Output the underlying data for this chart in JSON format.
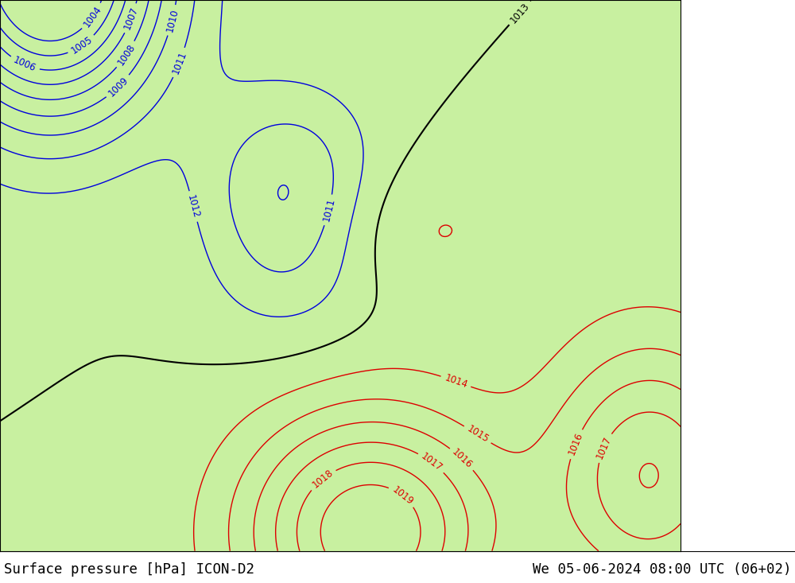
{
  "title_left": "Surface pressure [hPa] ICON-D2",
  "title_right": "We 05-06-2024 08:00 UTC (06+02)",
  "title_fontsize": 12.5,
  "title_color": "#000000",
  "fig_width": 10.0,
  "fig_height": 7.33,
  "dpi": 100,
  "land_color": "#c8f0a0",
  "sea_color": "#d8d8d8",
  "outside_color": "#c8b878",
  "border_color": "#000000",
  "coast_color": "#808080",
  "blue_contour_color": "#0000dd",
  "red_contour_color": "#dd0000",
  "black_contour_color": "#000000",
  "contour_linewidth": 1.0,
  "label_fontsize": 8.5,
  "levels_blue": [
    1004,
    1005,
    1006,
    1007,
    1008,
    1009,
    1010,
    1011,
    1012
  ],
  "levels_black": [
    1013
  ],
  "levels_red": [
    1014,
    1015,
    1016,
    1017,
    1018,
    1019
  ],
  "lon_min": -10.5,
  "lon_max": 23.5,
  "lat_min": 43.0,
  "lat_max": 57.5,
  "domain_lon_max": 20.5
}
